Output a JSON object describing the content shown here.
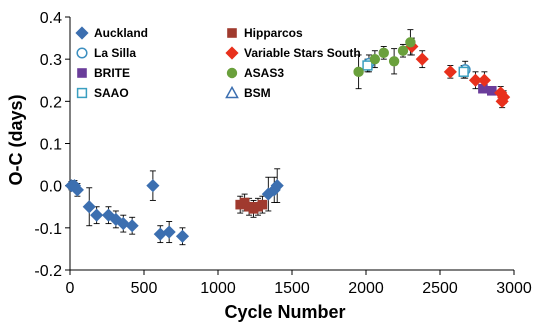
{
  "chart_data": {
    "type": "scatter",
    "title": "",
    "xlabel": "Cycle Number",
    "ylabel": "O-C (days)",
    "xlim": [
      0,
      3000
    ],
    "ylim": [
      -0.2,
      0.4
    ],
    "x_ticks": [
      "0",
      "500",
      "1000",
      "1500",
      "2000",
      "2500",
      "3000"
    ],
    "y_ticks": [
      "0.4",
      "0.3",
      "0.2",
      "0.1",
      "0.0",
      "-0.1",
      "-0.2"
    ],
    "grid": false,
    "legend_position": "top-left",
    "series": [
      {
        "name": "Auckland",
        "marker": "diamond",
        "color": "#3c6fb0",
        "filled": true,
        "points": [
          {
            "x": 10,
            "y": 0.0,
            "err": 0.01
          },
          {
            "x": 30,
            "y": 0.0,
            "err": 0.012
          },
          {
            "x": 50,
            "y": -0.01,
            "err": 0.015
          },
          {
            "x": 130,
            "y": -0.05,
            "err": 0.045
          },
          {
            "x": 180,
            "y": -0.07,
            "err": 0.02
          },
          {
            "x": 260,
            "y": -0.07,
            "err": 0.02
          },
          {
            "x": 310,
            "y": -0.08,
            "err": 0.02
          },
          {
            "x": 360,
            "y": -0.09,
            "err": 0.02
          },
          {
            "x": 420,
            "y": -0.095,
            "err": 0.02
          },
          {
            "x": 560,
            "y": 0.0,
            "err": 0.035
          },
          {
            "x": 610,
            "y": -0.115,
            "err": 0.02
          },
          {
            "x": 670,
            "y": -0.11,
            "err": 0.025
          },
          {
            "x": 760,
            "y": -0.12,
            "err": 0.02
          },
          {
            "x": 1340,
            "y": -0.02,
            "err": 0.04
          },
          {
            "x": 1380,
            "y": -0.01,
            "err": 0.03
          },
          {
            "x": 1400,
            "y": 0.0,
            "err": 0.04
          }
        ]
      },
      {
        "name": "La Silla",
        "marker": "circle",
        "color": "#3c8fc0",
        "filled": false,
        "points": [
          {
            "x": 2020,
            "y": 0.29,
            "err": 0.02
          },
          {
            "x": 2670,
            "y": 0.275,
            "err": 0.02
          }
        ]
      },
      {
        "name": "BRITE",
        "marker": "square",
        "color": "#6a3d9a",
        "filled": true,
        "points": [
          {
            "x": 2790,
            "y": 0.23,
            "err": 0.008
          },
          {
            "x": 2850,
            "y": 0.225,
            "err": 0.008
          }
        ]
      },
      {
        "name": "SAAO",
        "marker": "square",
        "color": "#3a9fc0",
        "filled": false,
        "points": [
          {
            "x": 2010,
            "y": 0.285,
            "err": 0.015
          },
          {
            "x": 2660,
            "y": 0.27,
            "err": 0.015
          }
        ]
      },
      {
        "name": "Hipparcos",
        "marker": "square",
        "color": "#a03a2e",
        "filled": true,
        "points": [
          {
            "x": 1150,
            "y": -0.045,
            "err": 0.02
          },
          {
            "x": 1180,
            "y": -0.04,
            "err": 0.02
          },
          {
            "x": 1210,
            "y": -0.05,
            "err": 0.02
          },
          {
            "x": 1240,
            "y": -0.055,
            "err": 0.02
          },
          {
            "x": 1270,
            "y": -0.05,
            "err": 0.02
          },
          {
            "x": 1300,
            "y": -0.045,
            "err": 0.02
          }
        ]
      },
      {
        "name": "Variable Stars South",
        "marker": "diamond",
        "color": "#e8301c",
        "filled": true,
        "points": [
          {
            "x": 2310,
            "y": 0.33,
            "err": 0.02
          },
          {
            "x": 2380,
            "y": 0.3,
            "err": 0.02
          },
          {
            "x": 2570,
            "y": 0.27,
            "err": 0.015
          },
          {
            "x": 2740,
            "y": 0.25,
            "err": 0.02
          },
          {
            "x": 2800,
            "y": 0.25,
            "err": 0.02
          },
          {
            "x": 2910,
            "y": 0.22,
            "err": 0.015
          },
          {
            "x": 2930,
            "y": 0.21,
            "err": 0.015
          },
          {
            "x": 2920,
            "y": 0.2,
            "err": 0.015
          }
        ]
      },
      {
        "name": "ASAS3",
        "marker": "circle",
        "color": "#6aa03c",
        "filled": true,
        "points": [
          {
            "x": 1950,
            "y": 0.27,
            "err": 0.04
          },
          {
            "x": 2060,
            "y": 0.3,
            "err": 0.02
          },
          {
            "x": 2120,
            "y": 0.315,
            "err": 0.015
          },
          {
            "x": 2190,
            "y": 0.295,
            "err": 0.03
          },
          {
            "x": 2250,
            "y": 0.32,
            "err": 0.015
          },
          {
            "x": 2300,
            "y": 0.34,
            "err": 0.03
          }
        ]
      },
      {
        "name": "BSM",
        "marker": "triangle",
        "color": "#3c6fb0",
        "filled": false,
        "points": []
      }
    ],
    "legend": [
      {
        "series": 0,
        "col": 0,
        "row": 0
      },
      {
        "series": 4,
        "col": 1,
        "row": 0
      },
      {
        "series": 1,
        "col": 0,
        "row": 1
      },
      {
        "series": 5,
        "col": 1,
        "row": 1
      },
      {
        "series": 2,
        "col": 0,
        "row": 2
      },
      {
        "series": 6,
        "col": 1,
        "row": 2
      },
      {
        "series": 3,
        "col": 0,
        "row": 3
      },
      {
        "series": 7,
        "col": 1,
        "row": 3
      }
    ]
  }
}
